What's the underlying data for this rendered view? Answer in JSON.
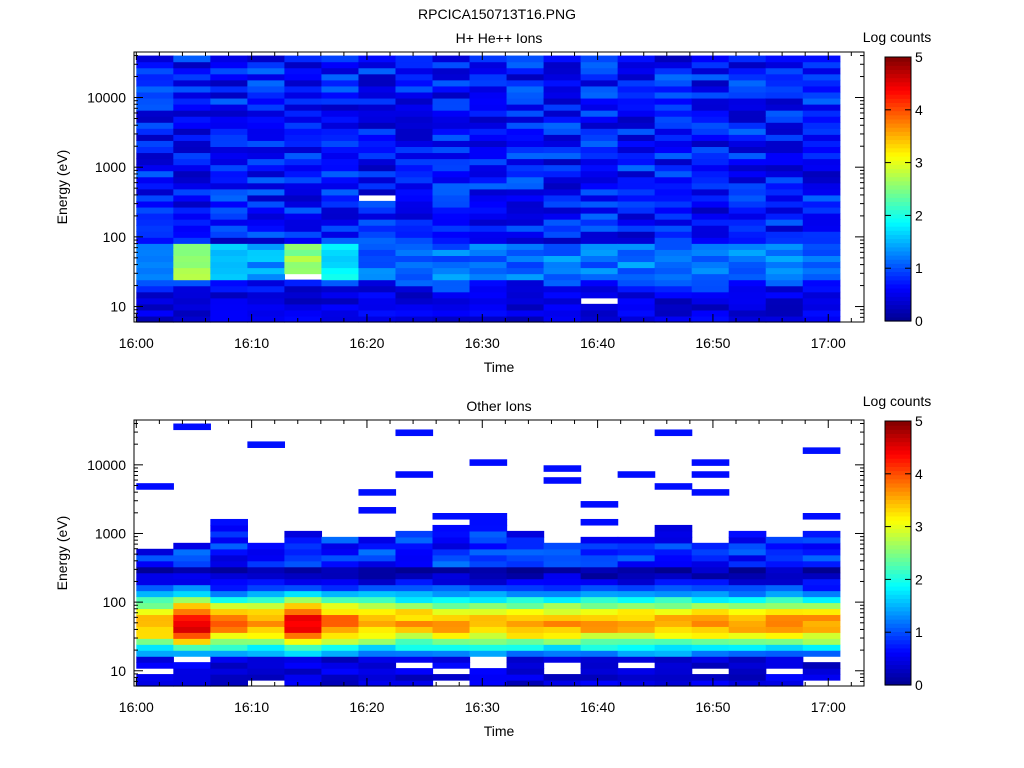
{
  "title": "RPCICA150713T16.PNG",
  "chart_data": [
    {
      "type": "heatmap",
      "title": "H+ He++ Ions",
      "xlabel": "Time",
      "ylabel": "Energy (eV)",
      "colorbar_label": "Log counts",
      "y_scale": "log",
      "ylim": [
        6,
        45000
      ],
      "x_tick_labels": [
        "16:00",
        "16:10",
        "16:20",
        "16:30",
        "16:40",
        "16:50",
        "17:00"
      ],
      "y_tick_labels": [
        "10",
        "100",
        "1000",
        "10000"
      ],
      "colorbar_ticks": [
        "0",
        "1",
        "2",
        "3",
        "4",
        "5"
      ],
      "colorbar_range": [
        0,
        5
      ],
      "time_range": [
        "16:00",
        "17:01"
      ],
      "colormap": [
        "#00008f",
        "#0000ff",
        "#0080ff",
        "#00ffff",
        "#80ff80",
        "#ffff00",
        "#ff8000",
        "#ff0000",
        "#800000"
      ],
      "features": {
        "background_level": 0.7,
        "low_energy_band_ev": [
          25,
          80
        ],
        "low_energy_band_peak_level": 2.4,
        "peak_times": [
          "16:05",
          "16:15"
        ]
      }
    },
    {
      "type": "heatmap",
      "title": "Other Ions",
      "xlabel": "Time",
      "ylabel": "Energy (eV)",
      "colorbar_label": "Log counts",
      "y_scale": "log",
      "ylim": [
        6,
        45000
      ],
      "x_tick_labels": [
        "16:00",
        "16:10",
        "16:20",
        "16:30",
        "16:40",
        "16:50",
        "17:00"
      ],
      "y_tick_labels": [
        "10",
        "100",
        "1000",
        "10000"
      ],
      "colorbar_ticks": [
        "0",
        "1",
        "2",
        "3",
        "4",
        "5"
      ],
      "colorbar_range": [
        0,
        5
      ],
      "time_range": [
        "16:00",
        "17:01"
      ],
      "colormap": [
        "#00008f",
        "#0000ff",
        "#0080ff",
        "#00ffff",
        "#80ff80",
        "#ffff00",
        "#ff8000",
        "#ff0000",
        "#800000"
      ],
      "features": {
        "band_center_ev": 50,
        "band_peak_level": 3.6,
        "hot_peak_level": 4.6,
        "hot_times": [
          "16:05",
          "16:15"
        ],
        "upper_edge_ev": 900,
        "sparse_above_ev": 1000
      }
    }
  ]
}
